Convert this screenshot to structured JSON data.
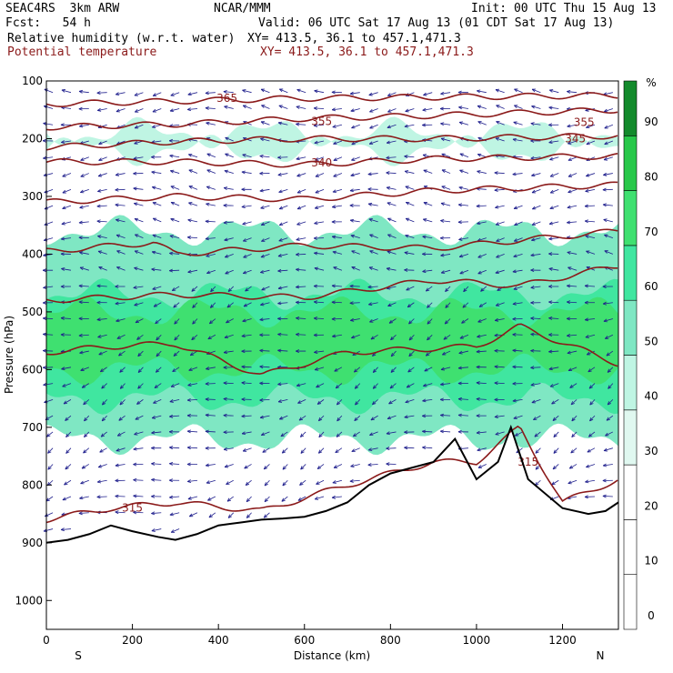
{
  "header": {
    "model": "SEAC4RS  3km ARW",
    "org": "NCAR/MMM",
    "init": "Init: 00 UTC Thu 15 Aug 13",
    "fcst": "Fcst:   54 h",
    "valid": "Valid: 06 UTC Sat 17 Aug 13 (01 CDT Sat 17 Aug 13)",
    "field1": "Relative humidity (w.r.t. water)",
    "xy1": "XY= 413.5, 36.1 to 457.1,471.3",
    "field2": "Potential temperature",
    "xy2": "XY= 413.5, 36.1 to 457.1,471.3"
  },
  "colors": {
    "rh_30": "#e0f8f0",
    "rh_40": "#bff5e3",
    "rh_50": "#7fe7c3",
    "rh_60": "#40e6a0",
    "rh_70": "#3fe070",
    "rh_80": "#28c84a",
    "rh_90": "#138a2c",
    "theta": "#8b1a1a",
    "terrain": "#000000",
    "wind": "#1e1e8c"
  },
  "chart_data": {
    "type": "heatmap",
    "xlabel": "Distance (km)",
    "ylabel": "Pressure (hPa)",
    "xlim": [
      0,
      1330
    ],
    "ylim": [
      1050,
      100
    ],
    "xticks": [
      "0",
      "200",
      "400",
      "600",
      "800",
      "1000",
      "1200"
    ],
    "yticks": [
      "100",
      "200",
      "300",
      "400",
      "500",
      "600",
      "700",
      "800",
      "900",
      "1000"
    ],
    "x_end_labels": {
      "left": "S",
      "right": "N"
    },
    "colorbar": {
      "unit": "%",
      "levels": [
        "0",
        "10",
        "20",
        "30",
        "40",
        "50",
        "60",
        "70",
        "80",
        "90"
      ]
    },
    "theta_contour_labels": [
      "365",
      "355",
      "355",
      "345",
      "340",
      "315",
      "315"
    ],
    "terrain_pressure": [
      [
        0,
        900
      ],
      [
        50,
        895
      ],
      [
        100,
        885
      ],
      [
        150,
        870
      ],
      [
        200,
        880
      ],
      [
        260,
        890
      ],
      [
        300,
        895
      ],
      [
        350,
        885
      ],
      [
        400,
        870
      ],
      [
        450,
        865
      ],
      [
        500,
        860
      ],
      [
        550,
        858
      ],
      [
        600,
        855
      ],
      [
        650,
        845
      ],
      [
        700,
        830
      ],
      [
        750,
        800
      ],
      [
        800,
        780
      ],
      [
        850,
        770
      ],
      [
        900,
        760
      ],
      [
        950,
        720
      ],
      [
        1000,
        790
      ],
      [
        1050,
        760
      ],
      [
        1080,
        700
      ],
      [
        1120,
        790
      ],
      [
        1200,
        840
      ],
      [
        1260,
        850
      ],
      [
        1300,
        845
      ],
      [
        1330,
        830
      ]
    ],
    "theta_levels": [
      {
        "label": "365",
        "p": [
          [
            0,
            140
          ],
          [
            300,
            135
          ],
          [
            600,
            130
          ],
          [
            900,
            128
          ],
          [
            1330,
            125
          ]
        ]
      },
      {
        "label": "355",
        "p": [
          [
            0,
            180
          ],
          [
            300,
            175
          ],
          [
            600,
            165
          ],
          [
            900,
            160
          ],
          [
            1330,
            150
          ]
        ]
      },
      {
        "label": "345",
        "p": [
          [
            0,
            215
          ],
          [
            300,
            205
          ],
          [
            600,
            200
          ],
          [
            900,
            200
          ],
          [
            1330,
            195
          ]
        ]
      },
      {
        "label": "340",
        "p": [
          [
            0,
            240
          ],
          [
            300,
            240
          ],
          [
            600,
            245
          ],
          [
            900,
            235
          ],
          [
            1330,
            230
          ]
        ]
      },
      {
        "label": "",
        "p": [
          [
            0,
            310
          ],
          [
            300,
            300
          ],
          [
            600,
            305
          ],
          [
            900,
            290
          ],
          [
            1330,
            280
          ]
        ]
      },
      {
        "label": "",
        "p": [
          [
            0,
            395
          ],
          [
            250,
            380
          ],
          [
            300,
            400
          ],
          [
            600,
            385
          ],
          [
            900,
            390
          ],
          [
            1330,
            360
          ]
        ]
      },
      {
        "label": "",
        "p": [
          [
            0,
            480
          ],
          [
            300,
            470
          ],
          [
            600,
            475
          ],
          [
            900,
            445
          ],
          [
            1100,
            455
          ],
          [
            1330,
            420
          ]
        ]
      },
      {
        "label": "",
        "p": [
          [
            0,
            570
          ],
          [
            150,
            560
          ],
          [
            300,
            555
          ],
          [
            500,
            610
          ],
          [
            700,
            570
          ],
          [
            1000,
            560
          ],
          [
            1100,
            525
          ],
          [
            1330,
            590
          ]
        ]
      },
      {
        "label": "315",
        "p": [
          [
            0,
            860
          ],
          [
            150,
            840
          ],
          [
            300,
            830
          ],
          [
            500,
            845
          ],
          [
            700,
            800
          ],
          [
            900,
            760
          ],
          [
            1000,
            760
          ],
          [
            1100,
            700
          ],
          [
            1200,
            830
          ],
          [
            1330,
            790
          ]
        ]
      }
    ],
    "rh_regions": [
      {
        "level": "rh_40",
        "pmin": 190,
        "pmax": 220
      },
      {
        "level": "rh_50",
        "pmin": 360,
        "pmax": 720
      },
      {
        "level": "rh_60",
        "pmin": 470,
        "pmax": 650
      },
      {
        "level": "rh_70",
        "pmin": 500,
        "pmax": 600
      }
    ]
  }
}
